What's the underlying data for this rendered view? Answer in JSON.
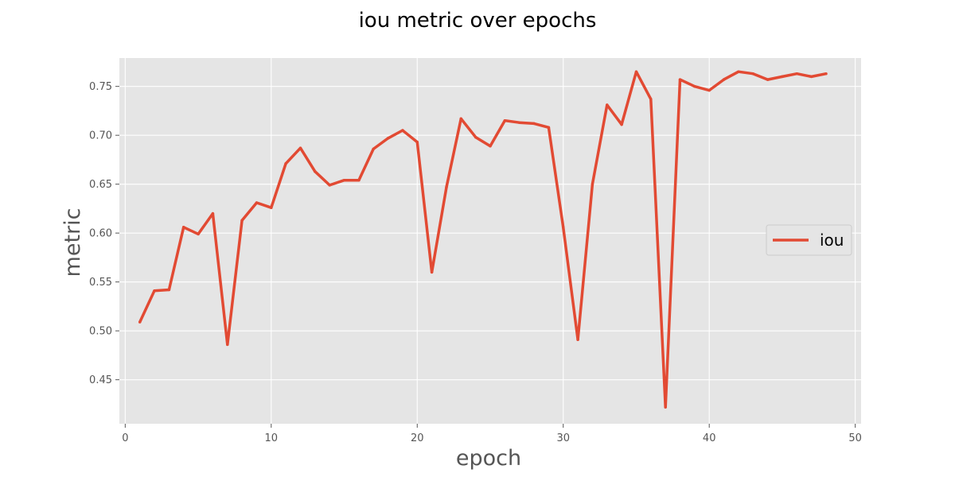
{
  "chart_data": {
    "type": "line",
    "title": "iou metric over epochs",
    "xlabel": "epoch",
    "ylabel": "metric",
    "xlim": [
      -0.4,
      50.4
    ],
    "ylim": [
      0.405,
      0.779
    ],
    "xticks": [
      0,
      10,
      20,
      30,
      40,
      50
    ],
    "yticks": [
      0.45,
      0.5,
      0.55,
      0.6,
      0.65,
      0.7,
      0.75
    ],
    "ytick_labels": [
      "0.45",
      "0.50",
      "0.55",
      "0.60",
      "0.65",
      "0.70",
      "0.75"
    ],
    "grid": true,
    "legend_position": "center-right",
    "colors": {
      "plot_background": "#e5e5e5",
      "grid": "#ffffff",
      "line": "#e24a33",
      "legend_background": "#e5e5e5",
      "legend_border": "#cccccc"
    },
    "series": [
      {
        "name": "iou",
        "x": [
          1,
          2,
          3,
          4,
          5,
          6,
          7,
          8,
          9,
          10,
          11,
          12,
          13,
          14,
          15,
          16,
          17,
          18,
          19,
          20,
          21,
          22,
          23,
          24,
          25,
          26,
          27,
          28,
          29,
          30,
          31,
          32,
          33,
          34,
          35,
          36,
          37,
          38,
          39,
          40,
          41,
          42,
          43,
          44,
          45,
          46,
          47,
          48
        ],
        "values": [
          0.509,
          0.541,
          0.542,
          0.606,
          0.599,
          0.62,
          0.486,
          0.613,
          0.631,
          0.626,
          0.671,
          0.687,
          0.663,
          0.649,
          0.654,
          0.654,
          0.686,
          0.697,
          0.705,
          0.693,
          0.56,
          0.647,
          0.717,
          0.698,
          0.689,
          0.715,
          0.713,
          0.712,
          0.708,
          0.606,
          0.491,
          0.65,
          0.731,
          0.711,
          0.765,
          0.737,
          0.422,
          0.757,
          0.75,
          0.746,
          0.757,
          0.765,
          0.763,
          0.757,
          0.76,
          0.763,
          0.76,
          0.763
        ]
      }
    ]
  }
}
